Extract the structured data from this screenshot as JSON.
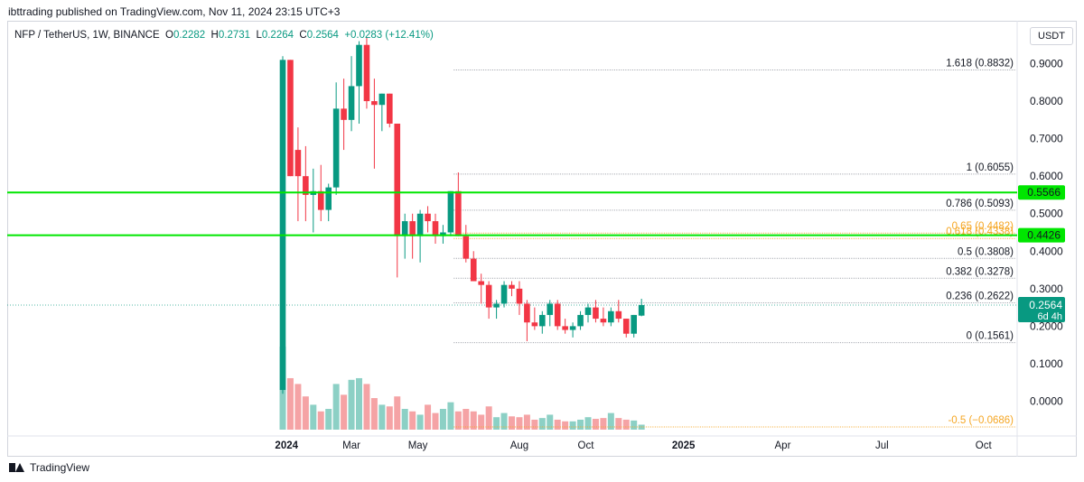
{
  "header": {
    "published_text": "ibttrading published on TradingView.com, Nov 11, 2024 23:15 UTC+3"
  },
  "legend": {
    "symbol": "NFP / TetherUS, 1W, BINANCE",
    "open_label": "O",
    "open": "0.2282",
    "high_label": "H",
    "high": "0.2731",
    "low_label": "L",
    "low": "0.2264",
    "close_label": "C",
    "close": "0.2564",
    "change": "+0.0283 (+12.41%)"
  },
  "currency_button": "USDT",
  "footer": {
    "brand": "TradingView"
  },
  "colors": {
    "up": "#089981",
    "down": "#f23645",
    "vol_up": "#8cd0c5",
    "vol_down": "#f5a3a5",
    "support": "#00e600",
    "fib": "#9598a1",
    "fib_ext": "#f5a623"
  },
  "chart_data": {
    "type": "candlestick",
    "y_axis": {
      "min": -0.1,
      "max": 0.95,
      "position": "right",
      "ticks": [
        0.9,
        0.8,
        0.7,
        0.6,
        0.5,
        0.4,
        0.3,
        0.2,
        0.1,
        0.0
      ],
      "tick_labels": [
        "0.9000",
        "0.8000",
        "0.7000",
        "0.6000",
        "0.5000",
        "0.4000",
        "0.3000",
        "0.2000",
        "0.1000",
        "0.0000"
      ]
    },
    "x_axis": {
      "labels": [
        {
          "text": "2024",
          "week": 0.5,
          "bold": true
        },
        {
          "text": "Mar",
          "week": 9
        },
        {
          "text": "May",
          "week": 17.7
        },
        {
          "text": "Aug",
          "week": 31
        },
        {
          "text": "Oct",
          "week": 39.7
        },
        {
          "text": "2025",
          "week": 52.5,
          "bold": true
        },
        {
          "text": "Apr",
          "week": 65.5
        },
        {
          "text": "Jul",
          "week": 78.5
        },
        {
          "text": "Oct",
          "week": 91.8
        }
      ]
    },
    "grid": false,
    "candles": [
      {
        "o": 0.03,
        "h": 0.92,
        "l": 0.02,
        "c": 0.91,
        "v": 1.0
      },
      {
        "o": 0.91,
        "h": 0.91,
        "l": 0.6,
        "c": 0.6,
        "v": 0.62
      },
      {
        "o": 0.67,
        "h": 0.73,
        "l": 0.48,
        "c": 0.6,
        "v": 0.55
      },
      {
        "o": 0.6,
        "h": 0.68,
        "l": 0.48,
        "c": 0.55,
        "v": 0.4
      },
      {
        "o": 0.55,
        "h": 0.62,
        "l": 0.45,
        "c": 0.56,
        "v": 0.3
      },
      {
        "o": 0.56,
        "h": 0.63,
        "l": 0.48,
        "c": 0.51,
        "v": 0.22
      },
      {
        "o": 0.51,
        "h": 0.58,
        "l": 0.48,
        "c": 0.57,
        "v": 0.25
      },
      {
        "o": 0.57,
        "h": 0.85,
        "l": 0.55,
        "c": 0.78,
        "v": 0.55
      },
      {
        "o": 0.78,
        "h": 0.86,
        "l": 0.67,
        "c": 0.75,
        "v": 0.42
      },
      {
        "o": 0.75,
        "h": 0.92,
        "l": 0.72,
        "c": 0.84,
        "v": 0.6
      },
      {
        "o": 0.84,
        "h": 0.96,
        "l": 0.74,
        "c": 0.95,
        "v": 0.62
      },
      {
        "o": 0.95,
        "h": 0.97,
        "l": 0.78,
        "c": 0.8,
        "v": 0.55
      },
      {
        "o": 0.8,
        "h": 0.86,
        "l": 0.62,
        "c": 0.79,
        "v": 0.38
      },
      {
        "o": 0.79,
        "h": 0.82,
        "l": 0.72,
        "c": 0.82,
        "v": 0.3
      },
      {
        "o": 0.82,
        "h": 0.82,
        "l": 0.73,
        "c": 0.74,
        "v": 0.28
      },
      {
        "o": 0.74,
        "h": 0.74,
        "l": 0.33,
        "c": 0.44,
        "v": 0.4
      },
      {
        "o": 0.44,
        "h": 0.5,
        "l": 0.38,
        "c": 0.48,
        "v": 0.25
      },
      {
        "o": 0.48,
        "h": 0.5,
        "l": 0.38,
        "c": 0.44,
        "v": 0.22
      },
      {
        "o": 0.44,
        "h": 0.51,
        "l": 0.37,
        "c": 0.5,
        "v": 0.18
      },
      {
        "o": 0.5,
        "h": 0.52,
        "l": 0.45,
        "c": 0.48,
        "v": 0.3
      },
      {
        "o": 0.48,
        "h": 0.5,
        "l": 0.42,
        "c": 0.44,
        "v": 0.2
      },
      {
        "o": 0.44,
        "h": 0.47,
        "l": 0.42,
        "c": 0.45,
        "v": 0.25
      },
      {
        "o": 0.45,
        "h": 0.56,
        "l": 0.44,
        "c": 0.56,
        "v": 0.33
      },
      {
        "o": 0.56,
        "h": 0.61,
        "l": 0.44,
        "c": 0.44,
        "v": 0.22
      },
      {
        "o": 0.44,
        "h": 0.47,
        "l": 0.37,
        "c": 0.38,
        "v": 0.25
      },
      {
        "o": 0.38,
        "h": 0.4,
        "l": 0.32,
        "c": 0.32,
        "v": 0.22
      },
      {
        "o": 0.32,
        "h": 0.34,
        "l": 0.26,
        "c": 0.31,
        "v": 0.18
      },
      {
        "o": 0.31,
        "h": 0.32,
        "l": 0.22,
        "c": 0.25,
        "v": 0.28
      },
      {
        "o": 0.25,
        "h": 0.27,
        "l": 0.22,
        "c": 0.26,
        "v": 0.15
      },
      {
        "o": 0.26,
        "h": 0.32,
        "l": 0.25,
        "c": 0.31,
        "v": 0.2
      },
      {
        "o": 0.31,
        "h": 0.32,
        "l": 0.28,
        "c": 0.3,
        "v": 0.16
      },
      {
        "o": 0.3,
        "h": 0.32,
        "l": 0.23,
        "c": 0.26,
        "v": 0.15
      },
      {
        "o": 0.26,
        "h": 0.27,
        "l": 0.16,
        "c": 0.21,
        "v": 0.18
      },
      {
        "o": 0.21,
        "h": 0.25,
        "l": 0.19,
        "c": 0.2,
        "v": 0.12
      },
      {
        "o": 0.2,
        "h": 0.24,
        "l": 0.18,
        "c": 0.23,
        "v": 0.14
      },
      {
        "o": 0.23,
        "h": 0.27,
        "l": 0.2,
        "c": 0.26,
        "v": 0.18
      },
      {
        "o": 0.26,
        "h": 0.27,
        "l": 0.19,
        "c": 0.2,
        "v": 0.12
      },
      {
        "o": 0.2,
        "h": 0.22,
        "l": 0.18,
        "c": 0.19,
        "v": 0.1
      },
      {
        "o": 0.19,
        "h": 0.21,
        "l": 0.17,
        "c": 0.2,
        "v": 0.1
      },
      {
        "o": 0.2,
        "h": 0.24,
        "l": 0.19,
        "c": 0.23,
        "v": 0.12
      },
      {
        "o": 0.23,
        "h": 0.26,
        "l": 0.21,
        "c": 0.25,
        "v": 0.15
      },
      {
        "o": 0.25,
        "h": 0.27,
        "l": 0.21,
        "c": 0.22,
        "v": 0.13
      },
      {
        "o": 0.22,
        "h": 0.25,
        "l": 0.2,
        "c": 0.21,
        "v": 0.14
      },
      {
        "o": 0.21,
        "h": 0.25,
        "l": 0.2,
        "c": 0.24,
        "v": 0.2
      },
      {
        "o": 0.24,
        "h": 0.27,
        "l": 0.21,
        "c": 0.22,
        "v": 0.14
      },
      {
        "o": 0.22,
        "h": 0.22,
        "l": 0.17,
        "c": 0.18,
        "v": 0.12
      },
      {
        "o": 0.18,
        "h": 0.23,
        "l": 0.17,
        "c": 0.23,
        "v": 0.11
      },
      {
        "o": 0.2282,
        "h": 0.2731,
        "l": 0.2264,
        "c": 0.2564,
        "v": 0.06
      }
    ],
    "horizontal_lines": [
      {
        "price": 0.5566,
        "label": "0.5566",
        "color": "#00e600"
      },
      {
        "price": 0.4426,
        "label": "0.4426",
        "color": "#00e600"
      }
    ],
    "current_price": {
      "price": 0.2564,
      "label": "0.2564",
      "countdown": "6d 4h"
    },
    "fib_levels": [
      {
        "level": "1.618",
        "price": 0.8832,
        "label": "1.618 (0.8832)"
      },
      {
        "level": "1",
        "price": 0.6055,
        "label": "1 (0.6055)"
      },
      {
        "level": "0.786",
        "price": 0.5093,
        "label": "0.786 (0.5093)"
      },
      {
        "level": "0.65",
        "price": 0.4482,
        "label": "0.65 (0.4482)",
        "color": "#f5a623"
      },
      {
        "level": "0.618",
        "price": 0.4338,
        "label": "0.618 (0.4338)",
        "color": "#f5a623"
      },
      {
        "level": "0.5",
        "price": 0.3808,
        "label": "0.5 (0.3808)"
      },
      {
        "level": "0.382",
        "price": 0.3278,
        "label": "0.382 (0.3278)"
      },
      {
        "level": "0.236",
        "price": 0.2622,
        "label": "0.236 (0.2622)"
      },
      {
        "level": "0",
        "price": 0.1561,
        "label": "0 (0.1561)"
      },
      {
        "level": "-0.5",
        "price": -0.0686,
        "label": "-0.5 (−0.0686)",
        "color": "#f5a623"
      }
    ]
  }
}
